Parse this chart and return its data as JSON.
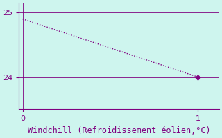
{
  "x": [
    0,
    1
  ],
  "y": [
    24.9,
    24.0
  ],
  "xlim": [
    -0.02,
    1.12
  ],
  "ylim": [
    23.5,
    25.15
  ],
  "yticks": [
    24,
    25
  ],
  "xticks": [
    0,
    1
  ],
  "line_color": "#800080",
  "marker": "D",
  "marker_size": 3.5,
  "marker_color": "#800080",
  "line_style": "dotted",
  "line_width": 1.0,
  "xlabel": "Windchill (Refroidissement éolien,°C)",
  "xlabel_fontsize": 8.5,
  "background_color": "#cef5ee",
  "grid_color": "#800080",
  "tick_color": "#800080",
  "tick_fontsize": 8,
  "spine_color": "#800080"
}
